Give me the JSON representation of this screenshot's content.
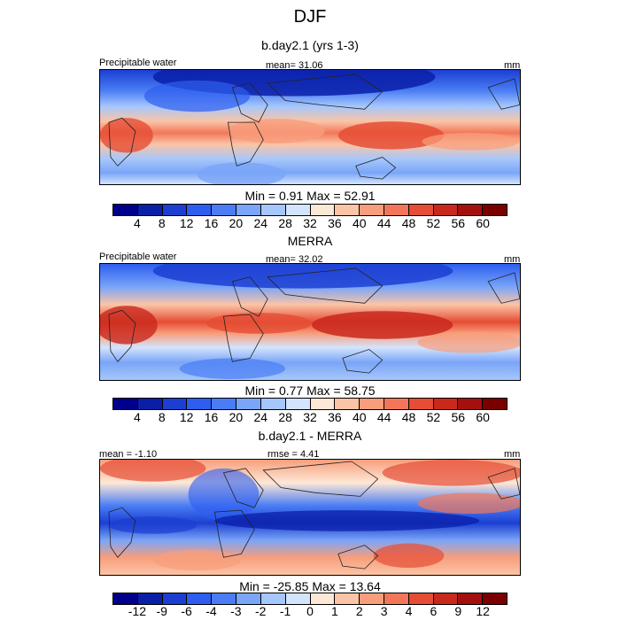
{
  "title": "DJF",
  "panels": [
    {
      "subtitle": "b.day2.1 (yrs 1-3)",
      "left_label": "Precipitable water",
      "center_label": "mean=  31.06",
      "right_label": "mm",
      "min_max": "Min =   0.91 Max =  52.91",
      "colorbar": {
        "labels": [
          "4",
          "8",
          "12",
          "16",
          "20",
          "24",
          "28",
          "32",
          "36",
          "40",
          "44",
          "48",
          "52",
          "56",
          "60"
        ],
        "colors": [
          "#00008c",
          "#0a1fa8",
          "#1c3fd2",
          "#2d5ef0",
          "#4a7df5",
          "#7aa5f8",
          "#a6c7fb",
          "#d3e4fd",
          "#fde8d6",
          "#fbc4a6",
          "#f89e7c",
          "#f2775a",
          "#e54d34",
          "#c9281d",
          "#a3100e",
          "#7a0000"
        ]
      }
    },
    {
      "subtitle": "MERRA",
      "left_label": "Precipitable water",
      "center_label": "mean=  32.02",
      "right_label": "mm",
      "min_max": "Min =   0.77 Max =  58.75",
      "colorbar": {
        "labels": [
          "4",
          "8",
          "12",
          "16",
          "20",
          "24",
          "28",
          "32",
          "36",
          "40",
          "44",
          "48",
          "52",
          "56",
          "60"
        ],
        "colors": [
          "#00008c",
          "#0a1fa8",
          "#1c3fd2",
          "#2d5ef0",
          "#4a7df5",
          "#7aa5f8",
          "#a6c7fb",
          "#d3e4fd",
          "#fde8d6",
          "#fbc4a6",
          "#f89e7c",
          "#f2775a",
          "#e54d34",
          "#c9281d",
          "#a3100e",
          "#7a0000"
        ]
      }
    },
    {
      "subtitle": "b.day2.1 - MERRA",
      "left_label": "mean =  -1.10",
      "center_label": "rmse =   4.41",
      "right_label": "mm",
      "min_max": "Min = -25.85 Max =  13.64",
      "colorbar": {
        "labels": [
          "-12",
          "-9",
          "-6",
          "-4",
          "-3",
          "-2",
          "-1",
          "0",
          "1",
          "2",
          "3",
          "4",
          "6",
          "9",
          "12"
        ],
        "colors": [
          "#00008c",
          "#0a1fa8",
          "#1c3fd2",
          "#2d5ef0",
          "#4a7df5",
          "#7aa5f8",
          "#a6c7fb",
          "#d3e4fd",
          "#fde8d6",
          "#fbc4a6",
          "#f89e7c",
          "#f2775a",
          "#e54d34",
          "#c9281d",
          "#a3100e",
          "#7a0000"
        ]
      }
    }
  ]
}
